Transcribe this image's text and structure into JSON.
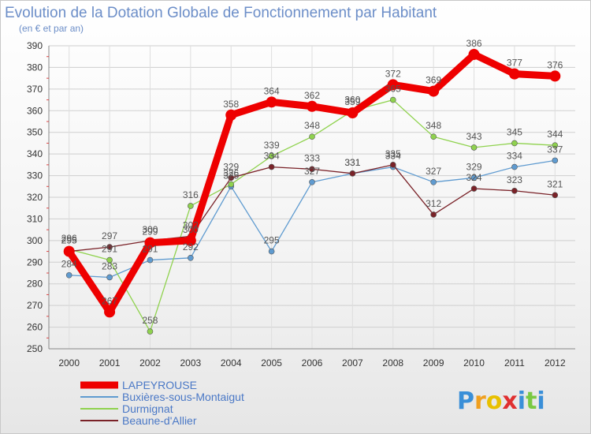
{
  "chart_data": {
    "type": "line",
    "title": "Evolution de la Dotation Globale de Fonctionnement par Habitant",
    "subtitle": "(en € et par an)",
    "categories": [
      "2000",
      "2001",
      "2002",
      "2003",
      "2004",
      "2005",
      "2006",
      "2007",
      "2008",
      "2009",
      "2010",
      "2011",
      "2012"
    ],
    "ylim": [
      250,
      390
    ],
    "yticks": [
      250,
      260,
      270,
      280,
      290,
      300,
      310,
      320,
      330,
      340,
      350,
      360,
      370,
      380,
      390
    ],
    "grid": true,
    "legend_position": "bottom-left",
    "series": [
      {
        "name": "LAPEYROUSE",
        "color": "#ee0000",
        "values": [
          295,
          267,
          299,
          300,
          358,
          364,
          362,
          359,
          372,
          369,
          386,
          377,
          376
        ]
      },
      {
        "name": "Buxières-sous-Montaigut",
        "color": "#5f9bd0",
        "values": [
          284,
          283,
          291,
          292,
          325,
          295,
          327,
          331,
          334,
          327,
          329,
          334,
          337
        ]
      },
      {
        "name": "Durmignat",
        "color": "#8fd24e",
        "values": [
          296,
          291,
          258,
          316,
          326,
          339,
          348,
          360,
          365,
          348,
          343,
          345,
          344
        ]
      },
      {
        "name": "Beaune-d'Allier",
        "color": "#7a2228",
        "values": [
          295,
          297,
          300,
          302,
          329,
          334,
          333,
          331,
          335,
          312,
          324,
          323,
          321
        ]
      }
    ]
  },
  "logo": {
    "text": "Proxiti",
    "letters": [
      "P",
      "r",
      "o",
      "x",
      "i",
      "t",
      "i"
    ],
    "colors": [
      "#3a8fd8",
      "#f0a020",
      "#e8c000",
      "#e03030",
      "#3a8fd8",
      "#7ac943",
      "#3a8fd8"
    ]
  }
}
